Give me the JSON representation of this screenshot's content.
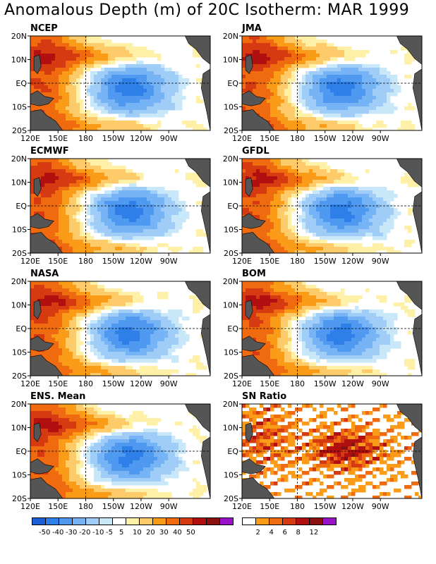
{
  "title": "Anomalous Depth (m) of 20C Isotherm: MAR 1999",
  "y_ticks": [
    "20N",
    "10N",
    "EQ",
    "10S",
    "20S"
  ],
  "x_ticks": [
    "120E",
    "150E",
    "180",
    "150W",
    "120W",
    "90W"
  ],
  "panels": [
    {
      "label": "NCEP",
      "kind": "anom"
    },
    {
      "label": "JMA",
      "kind": "anom"
    },
    {
      "label": "ECMWF",
      "kind": "anom"
    },
    {
      "label": "GFDL",
      "kind": "anom"
    },
    {
      "label": "NASA",
      "kind": "anom"
    },
    {
      "label": "BOM",
      "kind": "anom"
    },
    {
      "label": "ENS. Mean",
      "kind": "anom"
    },
    {
      "label": "SN Ratio",
      "kind": "snr"
    }
  ],
  "anomaly_legend": {
    "colors": [
      "#1a5fd6",
      "#2e7fe8",
      "#4f9af0",
      "#76b4f5",
      "#9fcdf7",
      "#c8e8fa",
      "#ffffff",
      "#fff0a8",
      "#fdcb6a",
      "#fb9c18",
      "#f06a10",
      "#d63a10",
      "#b01010",
      "#8a1010",
      "#9a12c8"
    ],
    "labels": [
      "-50",
      "-40",
      "-30",
      "-20",
      "-10",
      "-5",
      "5",
      "10",
      "20",
      "30",
      "40",
      "50"
    ]
  },
  "sn_legend": {
    "colors": [
      "#ffffff",
      "#fb9c18",
      "#f06a10",
      "#d63a10",
      "#b01010",
      "#8a1010",
      "#9a12c8"
    ],
    "labels": [
      "2",
      "4",
      "6",
      "8",
      "12"
    ]
  },
  "colors": {
    "land": "#555555",
    "frame": "#000000"
  }
}
